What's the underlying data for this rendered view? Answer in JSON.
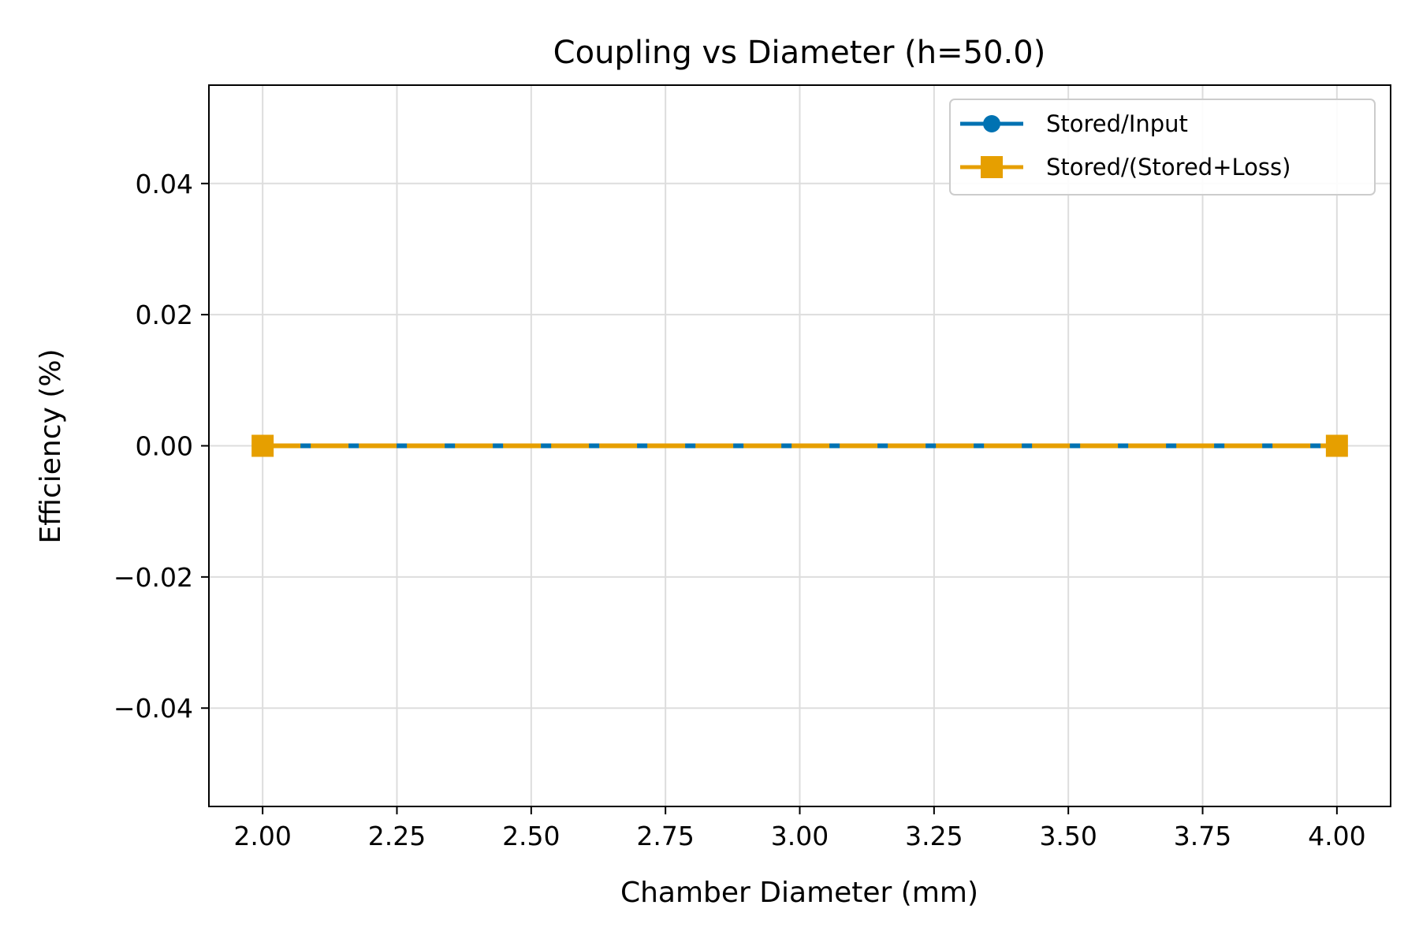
{
  "chart_data": {
    "type": "line",
    "title": "Coupling vs Diameter (h=50.0)",
    "xlabel": "Chamber Diameter (mm)",
    "ylabel": "Efficiency (%)",
    "xlim": [
      1.9,
      4.1
    ],
    "ylim": [
      -0.055,
      0.055
    ],
    "xticks": [
      2.0,
      2.25,
      2.5,
      2.75,
      3.0,
      3.25,
      3.5,
      3.75,
      4.0
    ],
    "xtick_labels": [
      "2.00",
      "2.25",
      "2.50",
      "2.75",
      "3.00",
      "3.25",
      "3.50",
      "3.75",
      "4.00"
    ],
    "yticks": [
      -0.04,
      -0.02,
      0.0,
      0.02,
      0.04
    ],
    "ytick_labels": [
      "−0.04",
      "−0.02",
      "0.00",
      "0.02",
      "0.04"
    ],
    "grid": true,
    "legend_position": "top-right",
    "series": [
      {
        "name": "Stored/Input",
        "x": [
          2.0,
          4.0
        ],
        "y": [
          0.0,
          0.0
        ],
        "color": "#0072b2",
        "marker": "circle",
        "linestyle": "solid"
      },
      {
        "name": "Stored/(Stored+Loss)",
        "x": [
          2.0,
          4.0
        ],
        "y": [
          0.0,
          0.0
        ],
        "color": "#e69f00",
        "marker": "square",
        "linestyle": "dashed"
      }
    ]
  }
}
